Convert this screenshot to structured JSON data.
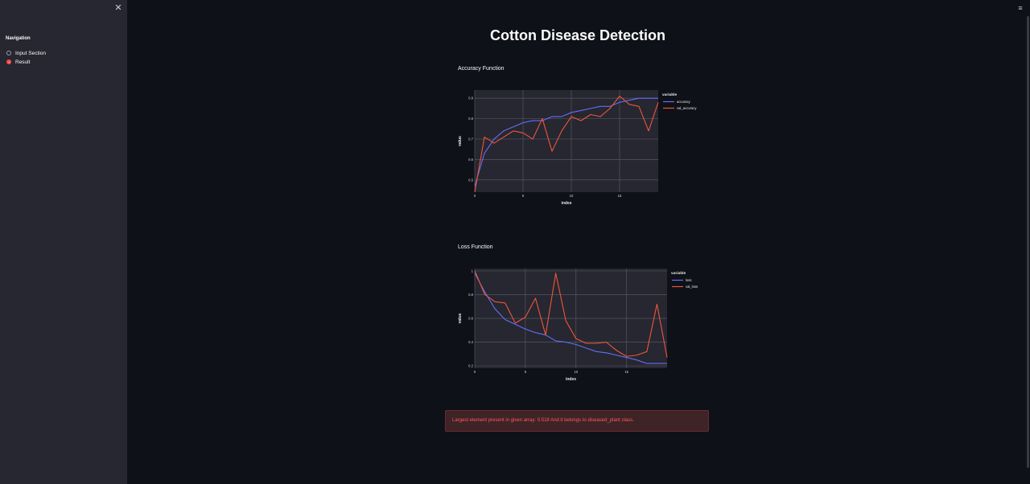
{
  "sidebar": {
    "close_icon": "close-icon",
    "nav_title": "Navigation",
    "items": [
      {
        "label": "Input Section",
        "selected": false
      },
      {
        "label": "Result",
        "selected": true
      }
    ]
  },
  "header": {
    "menu_icon": "hamburger-menu-icon"
  },
  "main": {
    "title": "Cotton Disease Detection",
    "alert": "Largest element present in given array: 0.518 And it belongs to diseased_plant class."
  },
  "colors": {
    "background": "#0e1117",
    "sidebar": "#262730",
    "plot_bg": "#262730",
    "train_line": "#636efa",
    "val_line": "#ef553b",
    "alert_bg": "#3e2327",
    "alert_text": "#ff5b5b"
  },
  "chart_data": [
    {
      "type": "line",
      "title": "Accuracy Function",
      "xlabel": "index",
      "ylabel": "value",
      "legend_title": "variable",
      "legend_placement": "right",
      "grid": true,
      "xlim": [
        0,
        19
      ],
      "ylim": [
        0.44,
        0.94
      ],
      "xticks": [
        0,
        5,
        10,
        15
      ],
      "yticks": [
        0.5,
        0.6,
        0.7,
        0.8,
        0.9
      ],
      "ytick_labels": [
        "0.5",
        "0.6",
        "0.7",
        "0.8",
        "0.9"
      ],
      "x": [
        0,
        1,
        2,
        3,
        4,
        5,
        6,
        7,
        8,
        9,
        10,
        11,
        12,
        13,
        14,
        15,
        16,
        17,
        18,
        19
      ],
      "series": [
        {
          "name": "accuracy",
          "color": "#636efa",
          "values": [
            0.47,
            0.63,
            0.7,
            0.74,
            0.76,
            0.78,
            0.79,
            0.79,
            0.81,
            0.81,
            0.83,
            0.84,
            0.85,
            0.86,
            0.86,
            0.88,
            0.89,
            0.9,
            0.9,
            0.9
          ]
        },
        {
          "name": "val_accuracy",
          "color": "#ef553b",
          "values": [
            0.44,
            0.71,
            0.68,
            0.71,
            0.74,
            0.73,
            0.7,
            0.8,
            0.64,
            0.74,
            0.81,
            0.79,
            0.82,
            0.81,
            0.85,
            0.91,
            0.87,
            0.86,
            0.74,
            0.88
          ]
        }
      ]
    },
    {
      "type": "line",
      "title": "Loss Function",
      "xlabel": "index",
      "ylabel": "value",
      "legend_title": "variable",
      "legend_placement": "right",
      "grid": true,
      "xlim": [
        0,
        19
      ],
      "ylim": [
        0.18,
        1.02
      ],
      "xticks": [
        0,
        5,
        10,
        15
      ],
      "yticks": [
        0.2,
        0.4,
        0.6,
        0.8,
        1.0
      ],
      "ytick_labels": [
        "0.2",
        "0.4",
        "0.6",
        "0.8",
        "1"
      ],
      "x": [
        0,
        1,
        2,
        3,
        4,
        5,
        6,
        7,
        8,
        9,
        10,
        11,
        12,
        13,
        14,
        15,
        16,
        17,
        18,
        19
      ],
      "series": [
        {
          "name": "loss",
          "color": "#636efa",
          "values": [
            0.98,
            0.82,
            0.68,
            0.59,
            0.55,
            0.51,
            0.48,
            0.46,
            0.41,
            0.4,
            0.38,
            0.35,
            0.32,
            0.31,
            0.29,
            0.27,
            0.25,
            0.22,
            0.22,
            0.22
          ]
        },
        {
          "name": "val_loss",
          "color": "#ef553b",
          "values": [
            1.0,
            0.8,
            0.74,
            0.73,
            0.56,
            0.61,
            0.77,
            0.46,
            0.98,
            0.58,
            0.43,
            0.39,
            0.39,
            0.4,
            0.33,
            0.28,
            0.29,
            0.32,
            0.72,
            0.27
          ]
        }
      ]
    }
  ]
}
